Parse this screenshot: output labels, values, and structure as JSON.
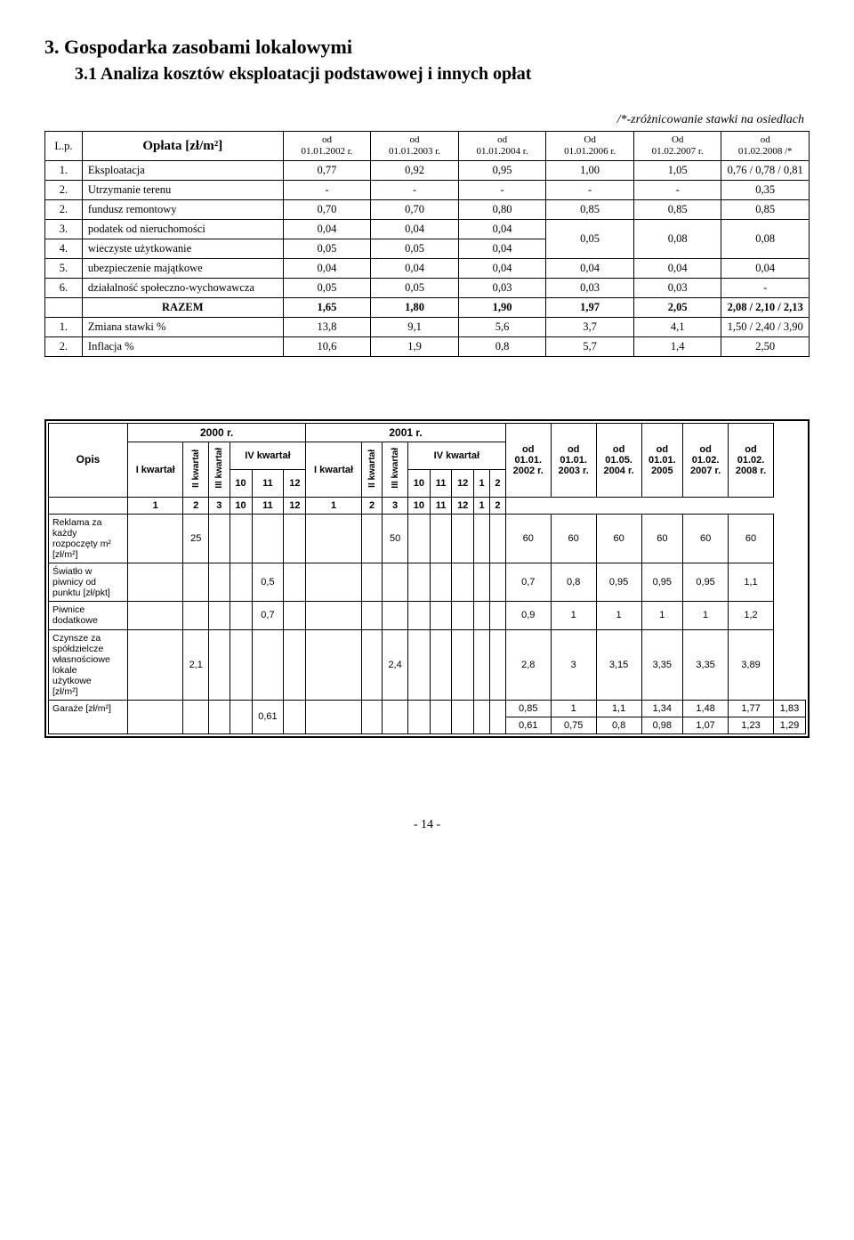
{
  "headings": {
    "section": "3.  Gospodarka zasobami lokalowymi",
    "subsection": "3.1  Analiza kosztów eksploatacji podstawowej i innych opłat",
    "right_note": "/*-zróżnicowanie stawki na osiedlach"
  },
  "table1": {
    "head": {
      "lp": "L.p.",
      "oplata": "Opłata [zł/m²]",
      "cols": [
        "od\n01.01.2002 r.",
        "od\n01.01.2003 r.",
        "od\n01.01.2004 r.",
        "Od\n01.01.2006 r.",
        "Od\n01.02.2007 r.",
        "od\n01.02.2008 /*"
      ]
    },
    "rows": [
      {
        "lp": "1.",
        "name": "Eksploatacja",
        "v": [
          "0,77",
          "0,92",
          "0,95",
          "1,00",
          "1,05",
          "0,76 / 0,78 / 0,81"
        ]
      },
      {
        "lp": "2.",
        "name": "Utrzymanie terenu",
        "v": [
          "-",
          "-",
          "-",
          "-",
          "-",
          "0,35"
        ]
      },
      {
        "lp": "2.",
        "name": "fundusz remontowy",
        "v": [
          "0,70",
          "0,70",
          "0,80",
          "0,85",
          "0,85",
          "0,85"
        ]
      },
      {
        "lp": "3.",
        "name": "podatek od nieruchomości",
        "v": [
          "0,04",
          "0,04",
          "0,04"
        ],
        "merge34": true,
        "m4": "0,05",
        "m5": "0,08",
        "m6": "0,08"
      },
      {
        "lp": "4.",
        "name": "wieczyste użytkowanie",
        "v": [
          "0,05",
          "0,05",
          "0,04"
        ],
        "skip456": true
      },
      {
        "lp": "5.",
        "name": "ubezpieczenie  majątkowe",
        "v": [
          "0,04",
          "0,04",
          "0,04",
          "0,04",
          "0,04",
          "0,04"
        ]
      },
      {
        "lp": "6.",
        "name": "działalność społeczno-wychowawcza",
        "v": [
          "0,05",
          "0,05",
          "0,03",
          "0,03",
          "0,03",
          "-"
        ]
      }
    ],
    "razem": {
      "label": "RAZEM",
      "v": [
        "1,65",
        "1,80",
        "1,90",
        "1,97",
        "2,05",
        "2,08 / 2,10 / 2,13"
      ]
    },
    "footer": [
      {
        "lp": "1.",
        "name": "Zmiana stawki %",
        "v": [
          "13,8",
          "9,1",
          "5,6",
          "3,7",
          "4,1",
          "1,50 / 2,40 / 3,90"
        ]
      },
      {
        "lp": "2.",
        "name": "Inflacja %",
        "v": [
          "10,6",
          "1,9",
          "0,8",
          "5,7",
          "1,4",
          "2,50"
        ]
      }
    ]
  },
  "table2": {
    "head": {
      "opis": "Opis",
      "year2000": "2000 r.",
      "year2001": "2001 r.",
      "kw1": "I kwartał",
      "kw2": "II kwartał",
      "kw3": "III kwartał",
      "kw4": "IV kwartał",
      "m10": "10",
      "m11": "11",
      "m12": "12",
      "m1": "1",
      "m2": "2",
      "m3": "3",
      "extra": [
        "od\n01.01.\n2002 r.",
        "od\n01.01.\n2003 r.",
        "od\n01.05.\n2004 r.",
        "od\n01.01.\n2005",
        "od\n01.02.\n2007 r.",
        "od\n01.02.\n2008 r."
      ]
    },
    "rows": [
      {
        "opis": "Reklama za\nkażdy\nrozpoczęty m²\n[zł/m²]",
        "v": [
          "",
          "25",
          "",
          "",
          "",
          "",
          "",
          "",
          "50",
          "",
          "",
          "",
          "",
          "",
          "60",
          "60",
          "60",
          "60",
          "60",
          "60"
        ]
      },
      {
        "opis": "Światło w\npiwnicy od\npunktu [zł/pkt]",
        "v": [
          "",
          "",
          "",
          "",
          "0,5",
          "",
          "",
          "",
          "",
          "",
          "",
          "",
          "",
          "",
          "0,7",
          "0,8",
          "0,95",
          "0,95",
          "0,95",
          "1,1"
        ]
      },
      {
        "opis": "Piwnice\ndodatkowe",
        "v": [
          "",
          "",
          "",
          "",
          "0,7",
          "",
          "",
          "",
          "",
          "",
          "",
          "",
          "",
          "",
          "0,9",
          "1",
          "1",
          "1",
          "1",
          "1,2"
        ]
      },
      {
        "opis": "Czynsze za\nspółdzielcze\nwłasnościowe\nlokale\nużytkowe\n[zł/m²]",
        "v": [
          "",
          "2,1",
          "",
          "",
          "",
          "",
          "",
          "",
          "2,4",
          "",
          "",
          "",
          "",
          "",
          "2,8",
          "3",
          "3,15",
          "3,35",
          "3,35",
          "3,89"
        ]
      },
      {
        "opis": "Garaże [zł/m²]",
        "dual": true,
        "v_top": [
          "",
          "",
          "",
          "",
          "0,61",
          "",
          "",
          "",
          "",
          "",
          "",
          "",
          "",
          "",
          "0,85",
          "1",
          "1,1",
          "1,34",
          "1,48",
          "1,77",
          "1,83"
        ],
        "v_bot": [
          "0,61",
          "0,75",
          "0,8",
          "0,98",
          "1,07",
          "1,23",
          "1,29"
        ]
      }
    ]
  },
  "page_number": "- 14 -"
}
